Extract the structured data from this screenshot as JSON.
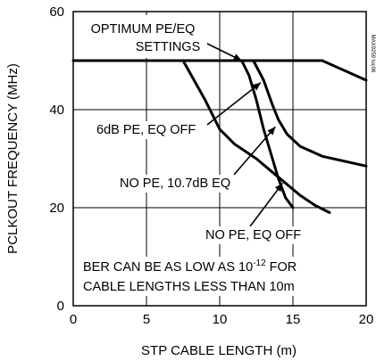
{
  "chart_data": {
    "type": "line",
    "xlabel": "STP CABLE LENGTH (m)",
    "ylabel": "PCLKOUT FREQUENCY (MHz)",
    "xlim": [
      0,
      20
    ],
    "ylim": [
      0,
      60
    ],
    "xticks": [
      "0",
      "5",
      "10",
      "15",
      "20"
    ],
    "yticks": [
      "0",
      "20",
      "40",
      "60"
    ],
    "grid": true,
    "side_label": "MAX9259 toc06",
    "series": [
      {
        "name": "OPTIMUM PE/EQ SETTINGS",
        "x": [
          0,
          17,
          18.5,
          20
        ],
        "y": [
          50,
          50,
          48,
          46
        ]
      },
      {
        "name": "6dB PE, EQ OFF",
        "x": [
          7.5,
          9,
          10,
          11,
          12.5,
          13.5,
          14.5,
          15.5,
          16.5,
          17.5
        ],
        "y": [
          50,
          42,
          36,
          33,
          30,
          27.5,
          25,
          22.5,
          20.5,
          19
        ]
      },
      {
        "name": "NO PE, 10.7dB EQ",
        "x": [
          11.5,
          12,
          12.5,
          13,
          13.5,
          14,
          14.5,
          15
        ],
        "y": [
          50,
          47,
          42,
          36,
          31,
          26,
          22,
          20
        ]
      },
      {
        "name": "NO PE, EQ OFF",
        "x": [
          12.3,
          13,
          13.6,
          14,
          14.6,
          15.5,
          17,
          18.5,
          20
        ],
        "y": [
          50,
          46,
          41,
          38,
          35,
          32.5,
          30.5,
          29.5,
          28.5
        ]
      }
    ],
    "annotations": [
      {
        "lines": [
          "OPTIMUM PE/EQ",
          "SETTINGS"
        ],
        "target": [
          11.5,
          50
        ]
      },
      {
        "lines": [
          "6dB PE, EQ OFF"
        ],
        "target": [
          12.8,
          45.5
        ]
      },
      {
        "lines": [
          "NO PE, 10.7dB EQ"
        ],
        "target": [
          13.8,
          36.5
        ]
      },
      {
        "lines": [
          "NO PE, EQ OFF"
        ],
        "target": [
          14.3,
          25
        ]
      },
      {
        "lines": [
          "BER CAN BE AS LOW AS 10",
          "CABLE LENGTHS LESS THAN 10m"
        ],
        "superscript": "-12",
        "after_superscript": " FOR"
      }
    ]
  }
}
